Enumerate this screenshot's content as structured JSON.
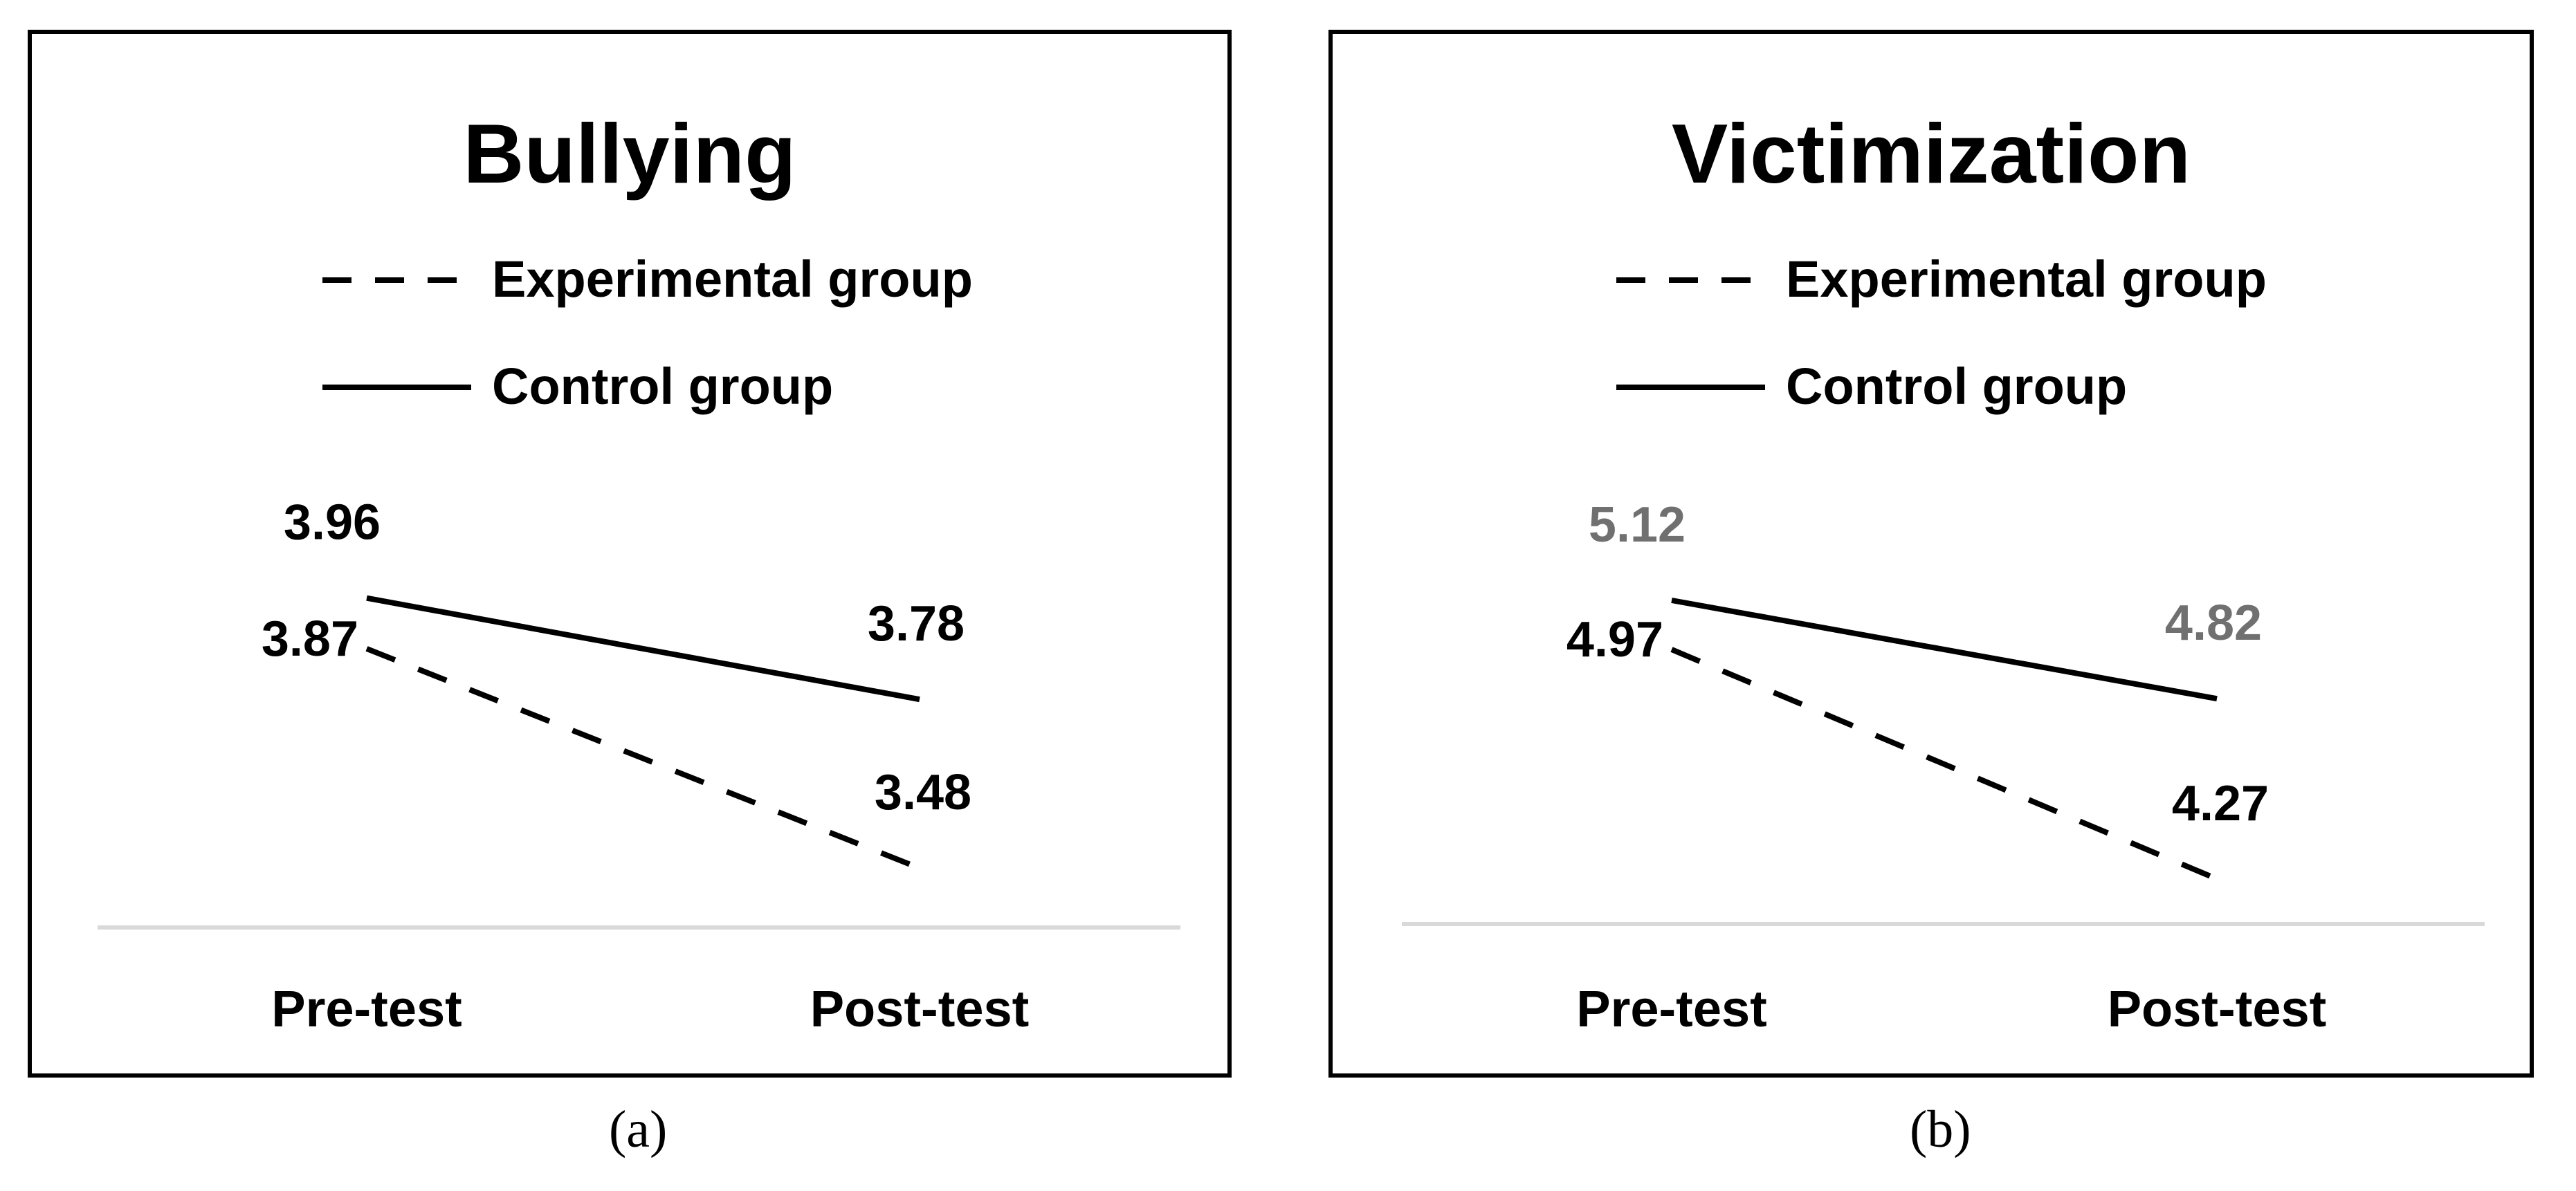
{
  "chart_data": [
    {
      "type": "line",
      "panel_label": "(a)",
      "title": "Bullying",
      "categories": [
        "Pre-test",
        "Post-test"
      ],
      "series": [
        {
          "name": "Experimental group",
          "values": [
            3.87,
            3.48
          ],
          "style": "dashed",
          "label_color": "#000000"
        },
        {
          "name": "Control group",
          "values": [
            3.96,
            3.78
          ],
          "style": "solid",
          "label_color": "#000000"
        }
      ],
      "ylim": [
        3.42,
        4.09
      ],
      "grid": false,
      "legend": "top"
    },
    {
      "type": "line",
      "panel_label": "(b)",
      "title": "Victimization",
      "categories": [
        "Pre-test",
        "Post-test"
      ],
      "series": [
        {
          "name": "Experimental group",
          "values": [
            4.97,
            4.27
          ],
          "style": "dashed",
          "label_color": "#000000"
        },
        {
          "name": "Control group",
          "values": [
            5.12,
            4.82
          ],
          "style": "solid",
          "label_color": "#707070"
        }
      ],
      "ylim": [
        4.2,
        5.35
      ],
      "grid": false,
      "legend": "top"
    }
  ],
  "colors": {
    "line": "#000000",
    "baseline": "#d9d9d9"
  }
}
